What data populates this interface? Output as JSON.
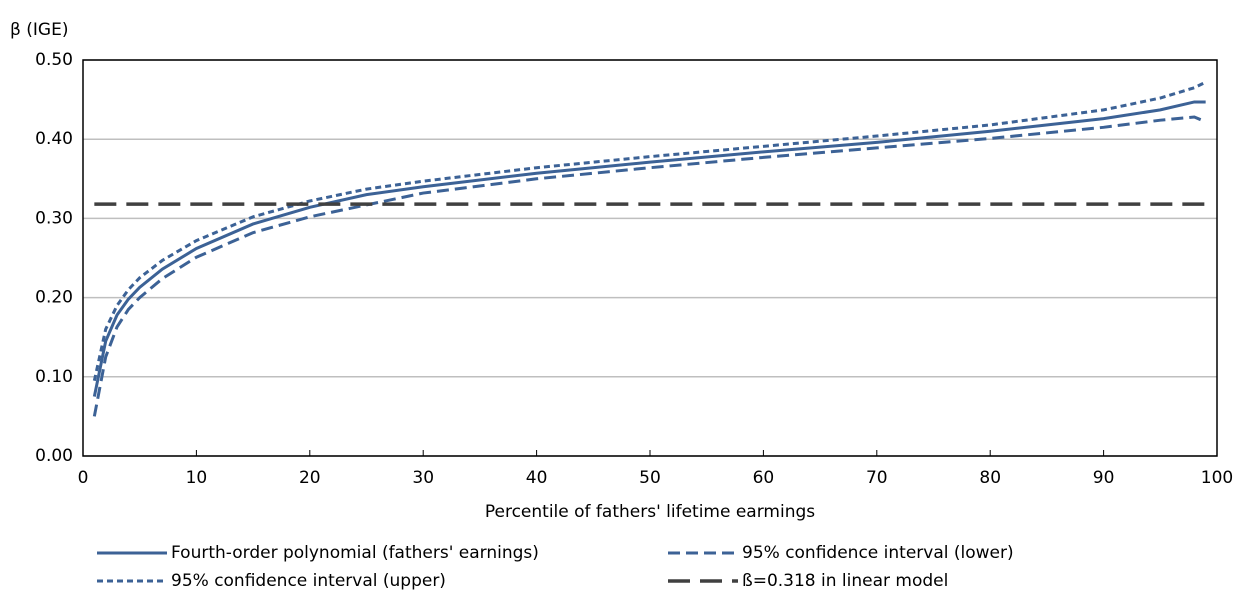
{
  "chart_data": {
    "type": "line",
    "y_label": "β (IGE)",
    "x_label": "Percentile of fathers' lifetime earmings",
    "xlim": [
      0,
      100
    ],
    "xticks": [
      0,
      10,
      20,
      30,
      40,
      50,
      60,
      70,
      80,
      90,
      100
    ],
    "ylim": [
      0,
      0.5
    ],
    "yticks": [
      {
        "value": 0,
        "label": "0.00"
      },
      {
        "value": 0.1,
        "label": "0.10"
      },
      {
        "value": 0.2,
        "label": "0.20"
      },
      {
        "value": 0.3,
        "label": "0.30"
      },
      {
        "value": 0.4,
        "label": "0.40"
      },
      {
        "value": 0.5,
        "label": "0.50"
      }
    ],
    "grid": true,
    "series": [
      {
        "name": "Fourth-order polynomial (fathers' earnings)",
        "color": "#3c6296",
        "style": "solid",
        "x": [
          1,
          2,
          3,
          4,
          5,
          7,
          10,
          15,
          20,
          25,
          30,
          40,
          50,
          60,
          70,
          80,
          90,
          95,
          98,
          99
        ],
        "values": [
          0.075,
          0.145,
          0.178,
          0.198,
          0.213,
          0.236,
          0.262,
          0.293,
          0.314,
          0.33,
          0.34,
          0.357,
          0.371,
          0.384,
          0.396,
          0.41,
          0.426,
          0.437,
          0.447,
          0.447
        ]
      },
      {
        "name": "95% confidence interval (lower)",
        "color": "#3c6296",
        "style": "dashed",
        "x": [
          1,
          2,
          3,
          4,
          5,
          7,
          10,
          15,
          20,
          25,
          30,
          40,
          50,
          60,
          70,
          80,
          90,
          95,
          98,
          99
        ],
        "values": [
          0.05,
          0.125,
          0.163,
          0.185,
          0.2,
          0.224,
          0.251,
          0.282,
          0.302,
          0.317,
          0.332,
          0.35,
          0.364,
          0.377,
          0.389,
          0.401,
          0.415,
          0.424,
          0.428,
          0.422
        ]
      },
      {
        "name": "95% confidence interval (upper)",
        "color": "#3c6296",
        "style": "dotted",
        "x": [
          1,
          2,
          3,
          4,
          5,
          7,
          10,
          15,
          20,
          25,
          30,
          40,
          50,
          60,
          70,
          80,
          90,
          95,
          98,
          99
        ],
        "values": [
          0.095,
          0.16,
          0.19,
          0.21,
          0.225,
          0.247,
          0.272,
          0.302,
          0.322,
          0.337,
          0.347,
          0.364,
          0.378,
          0.391,
          0.404,
          0.418,
          0.437,
          0.452,
          0.465,
          0.472
        ]
      },
      {
        "name": "ß=0.318 in linear model",
        "color": "#404040",
        "style": "longdash",
        "x": [
          1,
          99
        ],
        "values": [
          0.318,
          0.318
        ]
      }
    ]
  }
}
